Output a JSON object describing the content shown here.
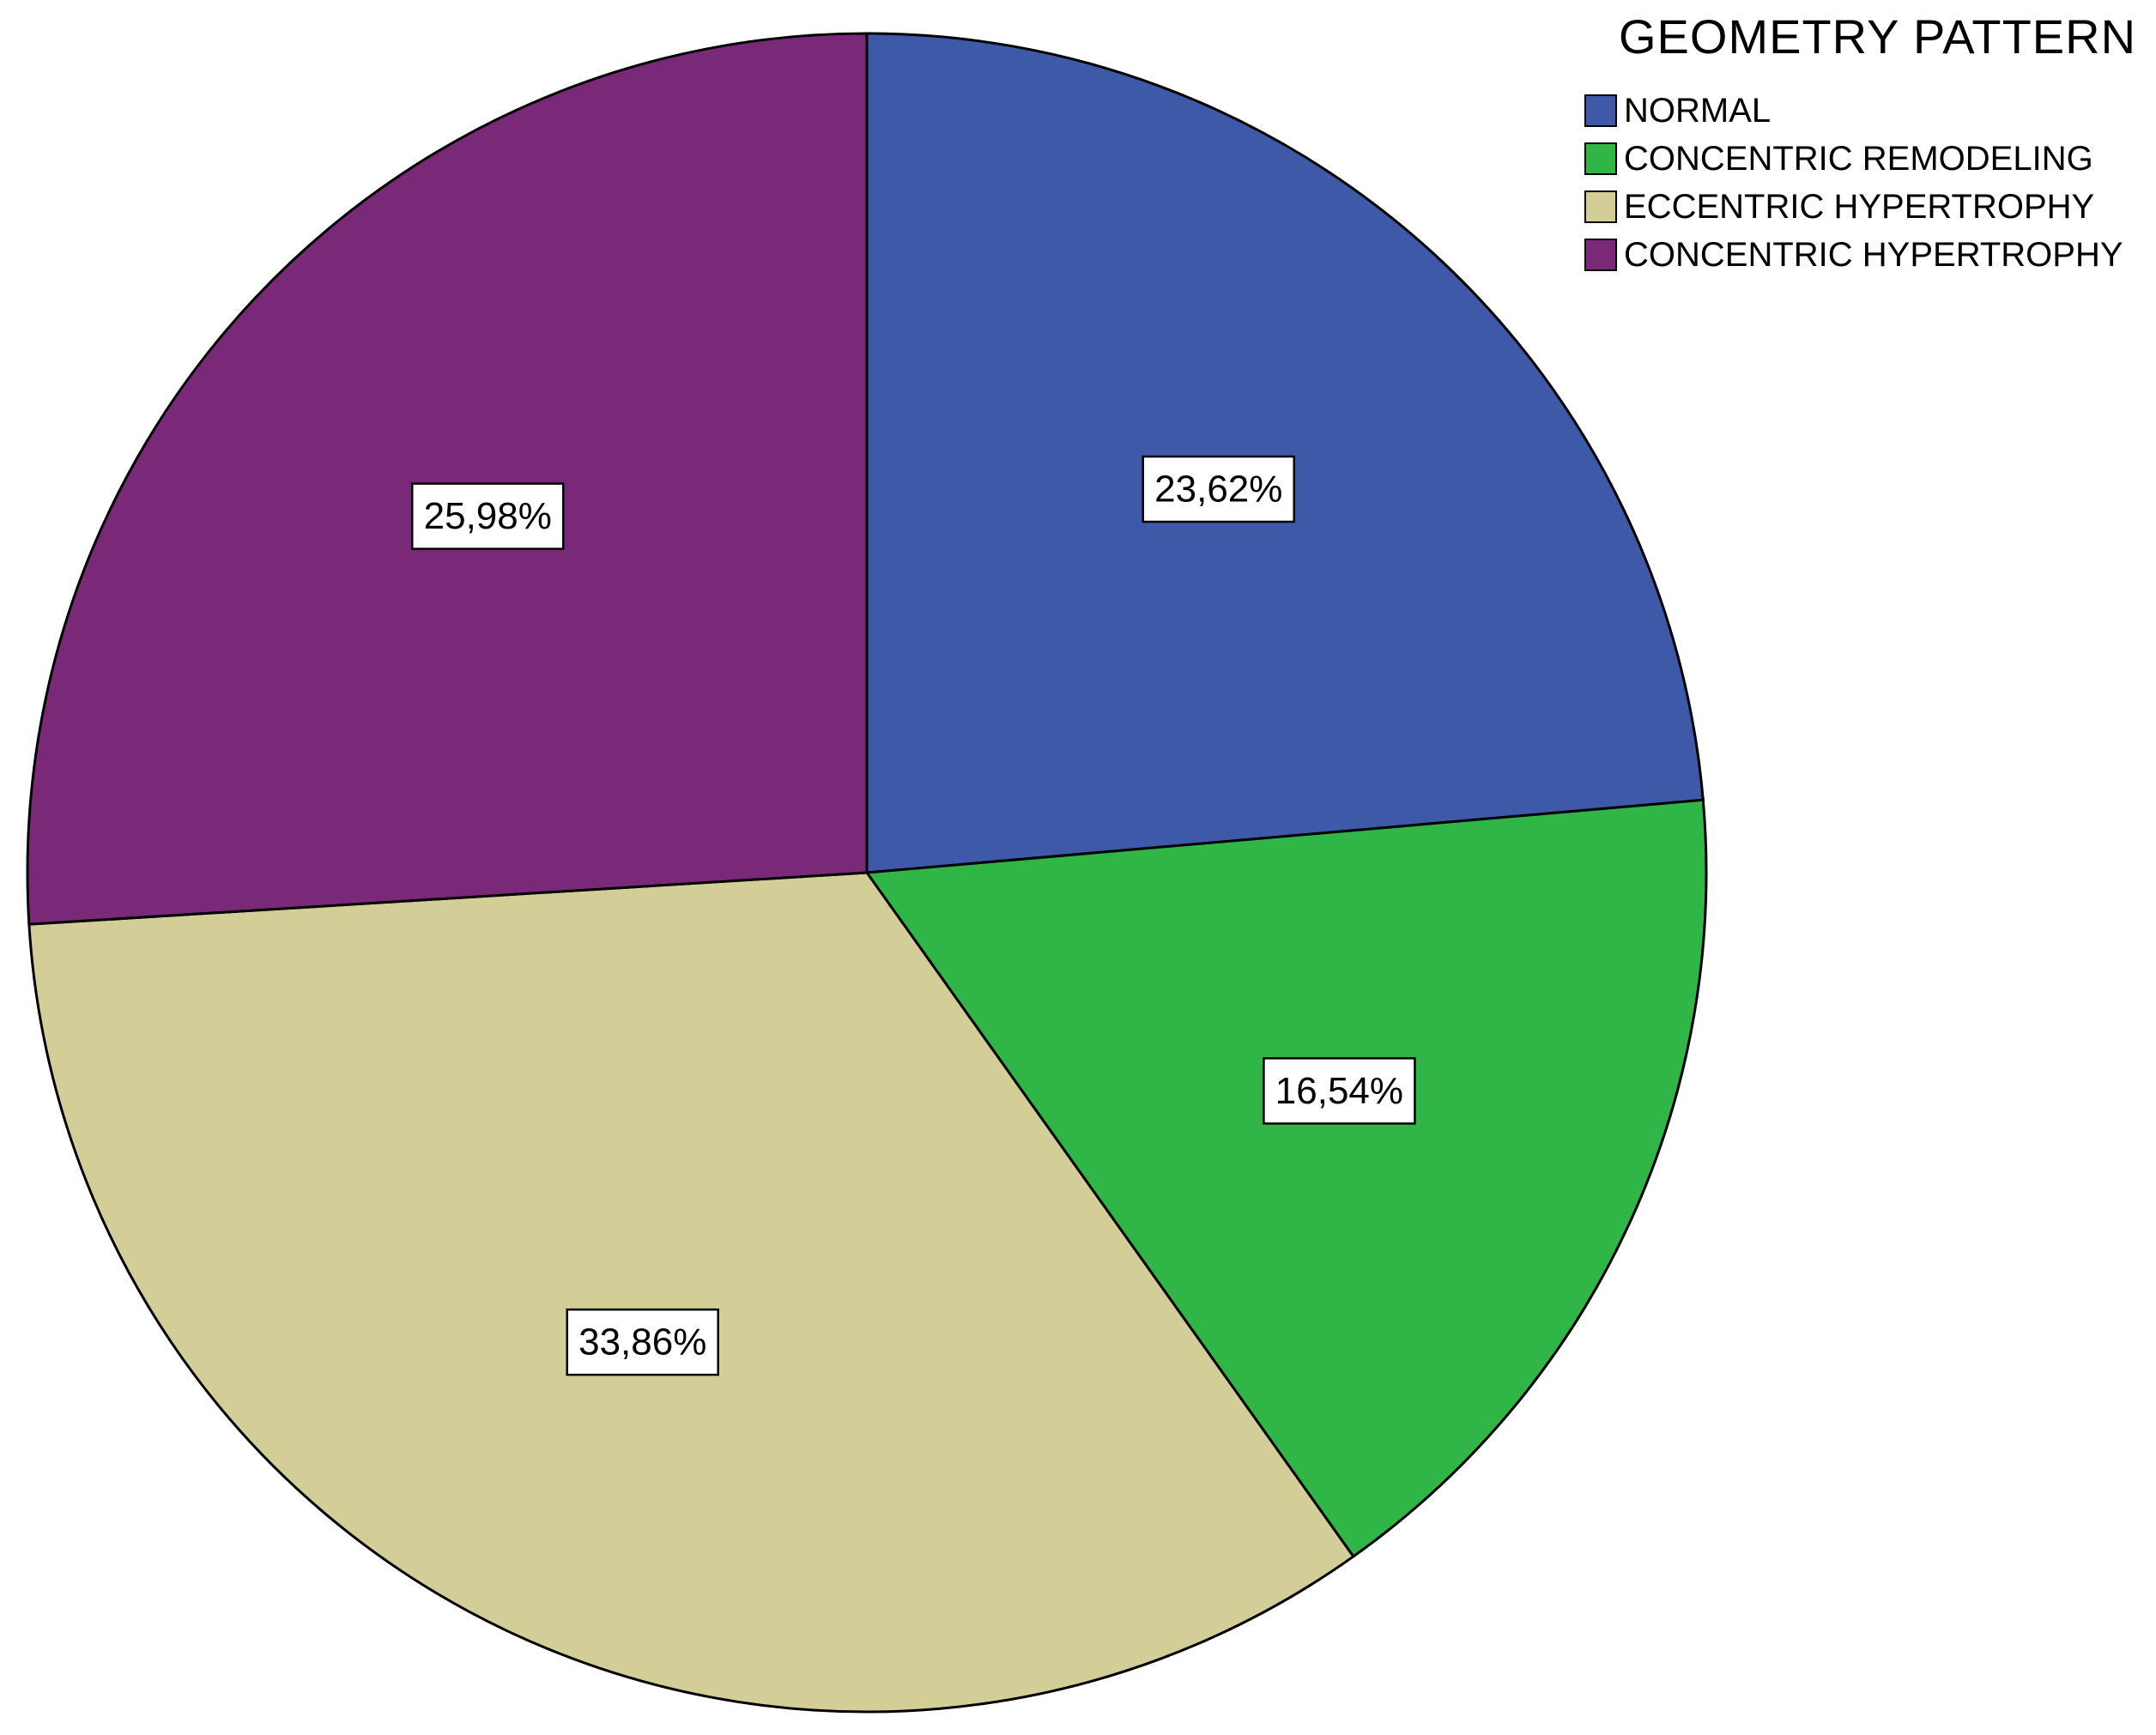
{
  "chart_data": {
    "type": "pie",
    "legend": {
      "title": "GEOMETRY PATTERN",
      "placement": "top-right"
    },
    "slices": [
      {
        "label": "NORMAL",
        "value": 23.62,
        "display": "23,62%",
        "color": "#3d59a8"
      },
      {
        "label": "CONCENTRIC REMODELING",
        "value": 16.54,
        "display": "16,54%",
        "color": "#2fb647"
      },
      {
        "label": "ECCENTRIC HYPERTROPHY",
        "value": 33.86,
        "display": "33,86%",
        "color": "#d3ce97"
      },
      {
        "label": "CONCENTRIC HYPERTROPHY",
        "value": 25.98,
        "display": "25,98%",
        "color": "#7a2878"
      }
    ],
    "start": "12 o'clock",
    "direction": "clockwise"
  }
}
